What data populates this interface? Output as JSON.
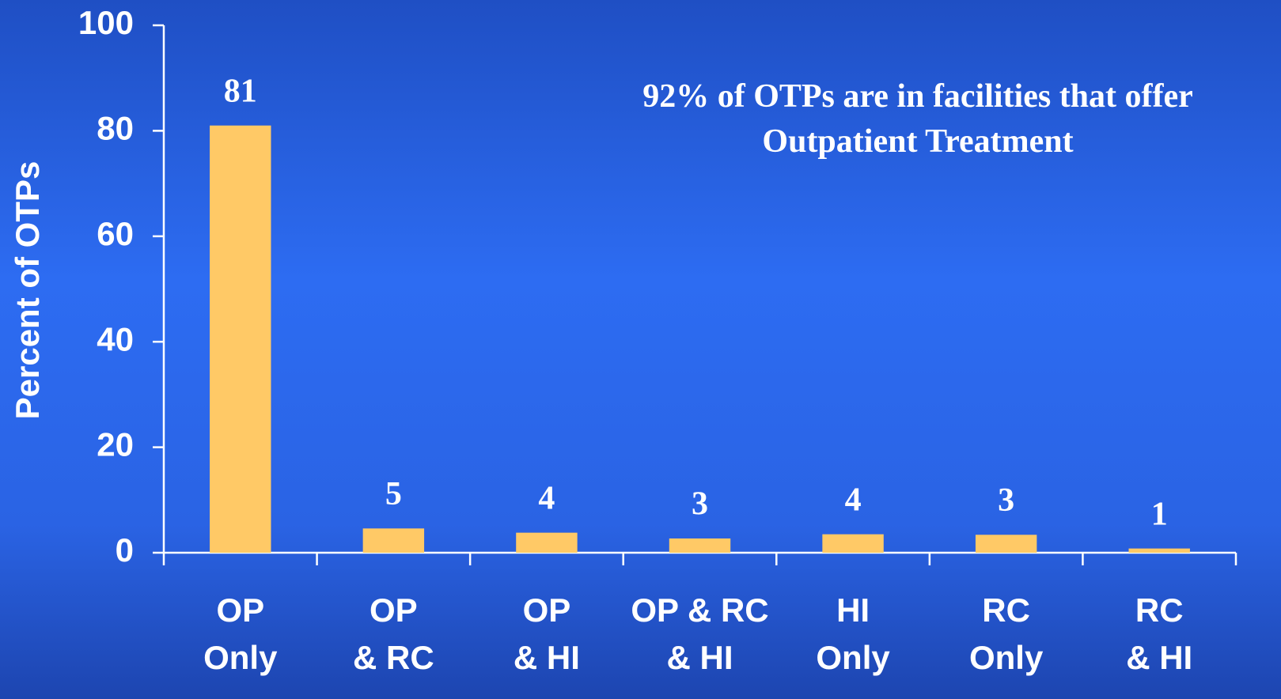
{
  "chart_data": {
    "type": "bar",
    "y_axis_label": "Percent of OTPs",
    "annotation": "92% of OTPs are in facilities that offer\nOutpatient Treatment",
    "categories": [
      "OP\nOnly",
      "OP\n& RC",
      "OP\n& HI",
      "OP & RC\n& HI",
      "HI\nOnly",
      "RC\nOnly",
      "RC\n& HI"
    ],
    "values": [
      81,
      4.6,
      3.8,
      2.7,
      3.5,
      3.4,
      0.8
    ],
    "value_labels": [
      "81",
      "5",
      "4",
      "3",
      "4",
      "3",
      "1"
    ],
    "color": "#ffc966",
    "ylim": [
      0,
      100
    ],
    "yticks": [
      0,
      20,
      40,
      60,
      80,
      100
    ],
    "grid": false
  }
}
